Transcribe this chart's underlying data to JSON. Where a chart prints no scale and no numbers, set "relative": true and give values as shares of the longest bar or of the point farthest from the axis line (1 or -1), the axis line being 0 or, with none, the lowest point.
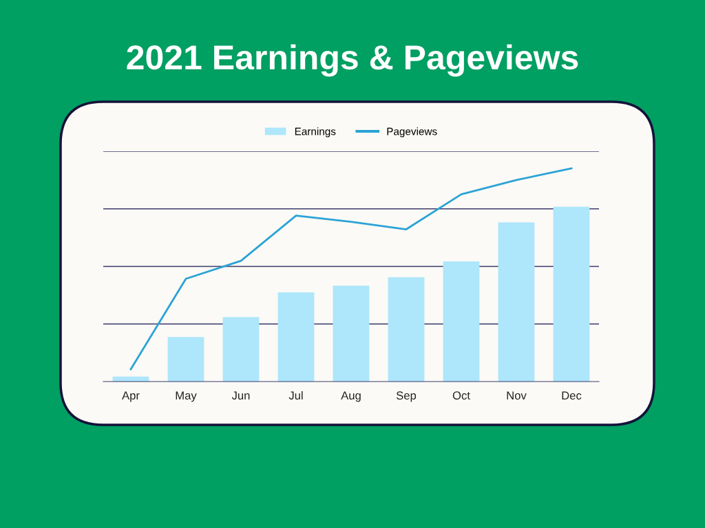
{
  "chart_data": {
    "type": "bar",
    "title": "2021 Earnings & Pageviews",
    "relative": true,
    "categories": [
      "Apr",
      "May",
      "Jun",
      "Jul",
      "Aug",
      "Sep",
      "Oct",
      "Nov",
      "Dec"
    ],
    "series": [
      {
        "name": "Earnings",
        "color": "#aee6fb",
        "values": [
          0.023,
          0.209,
          0.302,
          0.418,
          0.45,
          0.489,
          0.563,
          0.746,
          0.82
        ]
      },
      {
        "name": "Pageviews",
        "type": "line",
        "color": "#2ba3d6",
        "values": [
          0.058,
          0.482,
          0.566,
          0.778,
          0.749,
          0.714,
          0.878,
          0.945,
          1.0
        ]
      }
    ],
    "ref_lines": [
      {
        "axis": "y",
        "value": 0.27,
        "color": "#3a3a6a"
      },
      {
        "axis": "y",
        "value": 0.54,
        "color": "#3a3a6a"
      },
      {
        "axis": "y",
        "value": 0.81,
        "color": "#3a3a6a"
      },
      {
        "axis": "y",
        "value": 1.08,
        "color": "#3a3a6a"
      }
    ],
    "legend": "top"
  }
}
